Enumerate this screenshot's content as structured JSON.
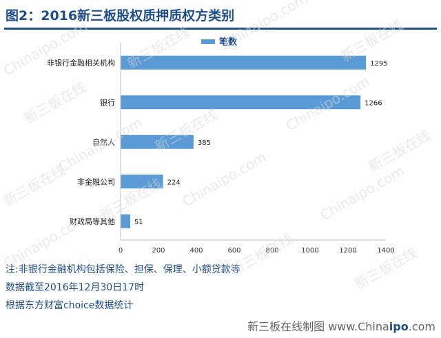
{
  "title": "图2：2016新三板股权质押质权方类别",
  "chart_data": {
    "type": "bar",
    "orientation": "horizontal",
    "title": "图2：2016新三板股权质押质权方类别",
    "categories": [
      "非银行金融相关机构",
      "银行",
      "自然人",
      "非金融公司",
      "财政局等其他"
    ],
    "series": [
      {
        "name": "笔数",
        "values": [
          1295,
          1266,
          385,
          224,
          51
        ]
      }
    ],
    "x_ticks": [
      0,
      200,
      400,
      600,
      800,
      1000,
      1200,
      1400
    ],
    "xlim": [
      0,
      1400
    ],
    "legend": "top-center",
    "grid": false,
    "bar_color": "#5b9bd5"
  },
  "notes": [
    "注:非银行金融机构包括保险、担保、保理、小额贷款等",
    "数据截至2016年12月30日17时",
    "根据东方财富choice数据统计"
  ],
  "footer": {
    "prefix": "新三板在线制图 www.China",
    "brand": "ipo",
    "suffix": ".com"
  },
  "watermark": {
    "cn": "新三板在线",
    "en": "Chinaipo.com"
  }
}
